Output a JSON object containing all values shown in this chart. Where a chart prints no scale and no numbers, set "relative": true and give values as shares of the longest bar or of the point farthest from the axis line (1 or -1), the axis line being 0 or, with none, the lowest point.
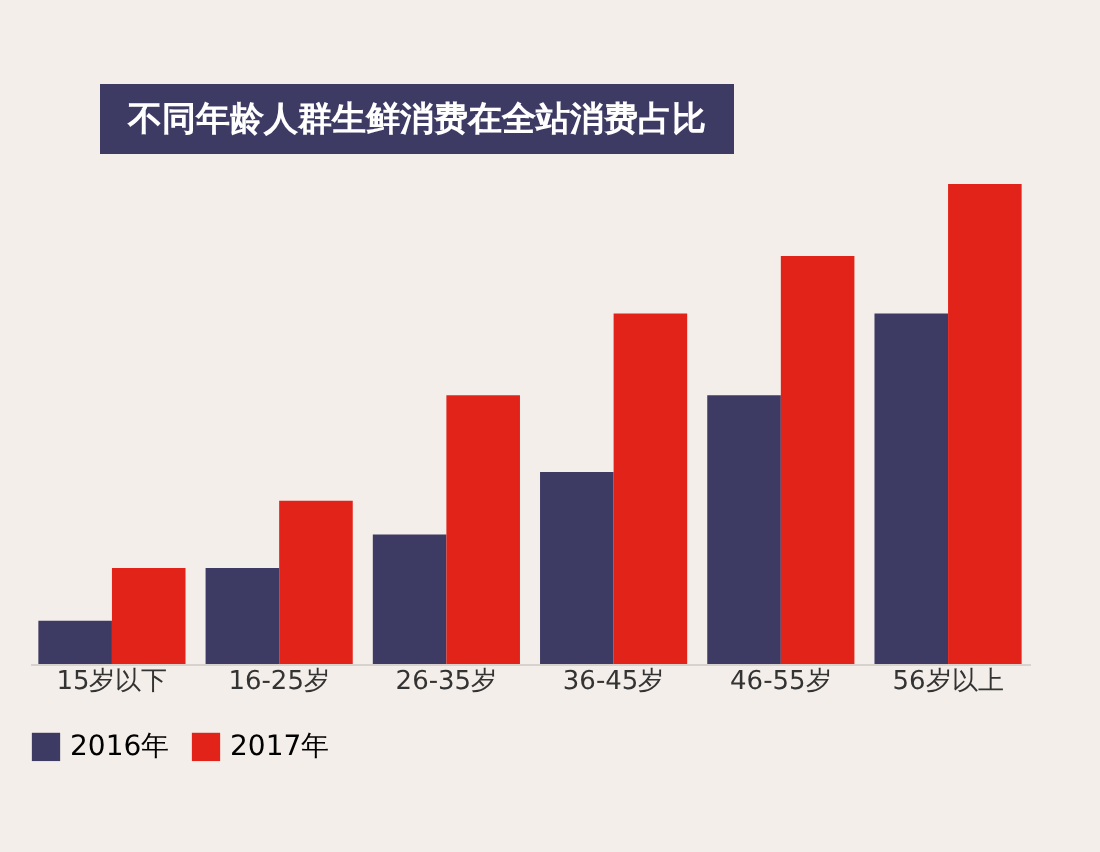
{
  "chart_data": {
    "type": "bar",
    "title": "不同年龄人群生鲜消费在全站消费占比",
    "relative": true,
    "legend": "bottom",
    "categories": [
      "15岁以下",
      "16-25岁",
      "26-35岁",
      "36-45岁",
      "46-55岁",
      "56岁以上"
    ],
    "series": [
      {
        "name": "2016年",
        "color": "#3d3a63",
        "values": [
          0.09,
          0.2,
          0.27,
          0.4,
          0.56,
          0.73
        ]
      },
      {
        "name": "2017年",
        "color": "#e2231a",
        "values": [
          0.2,
          0.34,
          0.56,
          0.73,
          0.85,
          1.0
        ]
      }
    ]
  }
}
